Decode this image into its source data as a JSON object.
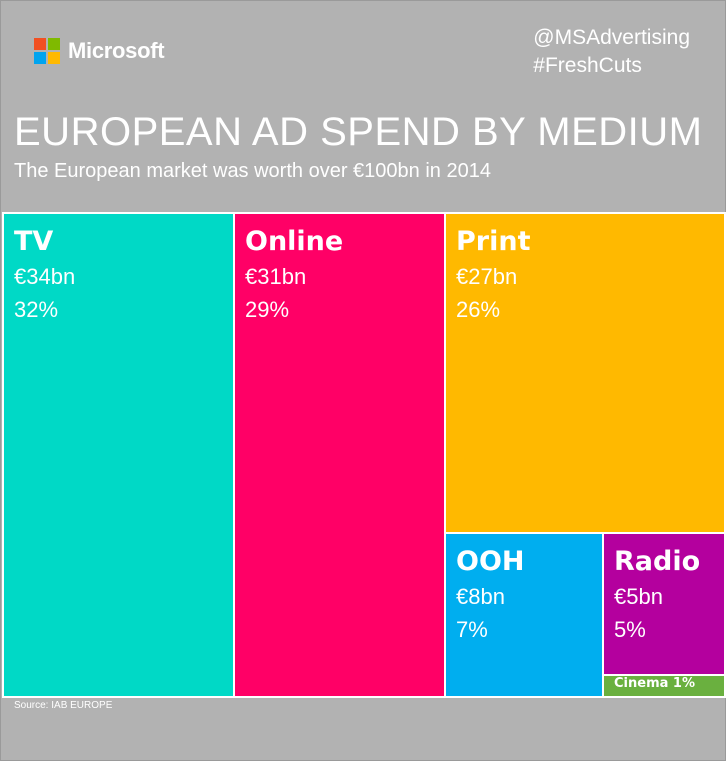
{
  "brand": {
    "name": "Microsoft",
    "logo_colors": [
      "#f25022",
      "#7fba00",
      "#00a4ef",
      "#ffb900"
    ]
  },
  "handles": [
    "@MSAdvertising",
    "#FreshCuts"
  ],
  "source": "Source: IAB EUROPE",
  "colors": {
    "background": "#b2b2b2",
    "TV": "#00d9c6",
    "Online": "#ff0066",
    "Print": "#ffb900",
    "OOH": "#00aeef",
    "Radio": "#b4009e",
    "Cinema": "#6ab03f"
  },
  "chart_data": {
    "type": "treemap",
    "title": "EUROPEAN AD SPEND BY MEDIUM",
    "subtitle": "The European market was worth over €100bn in 2014",
    "unit": "€bn",
    "items": [
      {
        "name": "TV",
        "value": 34,
        "value_label": "€34bn",
        "percent": 32,
        "percent_label": "32%"
      },
      {
        "name": "Online",
        "value": 31,
        "value_label": "€31bn",
        "percent": 29,
        "percent_label": "29%"
      },
      {
        "name": "Print",
        "value": 27,
        "value_label": "€27bn",
        "percent": 26,
        "percent_label": "26%"
      },
      {
        "name": "OOH",
        "value": 8,
        "value_label": "€8bn",
        "percent": 7,
        "percent_label": "7%"
      },
      {
        "name": "Radio",
        "value": 5,
        "value_label": "€5bn",
        "percent": 5,
        "percent_label": "5%"
      },
      {
        "name": "Cinema",
        "percent": 1,
        "label": "Cinema 1%"
      }
    ]
  }
}
